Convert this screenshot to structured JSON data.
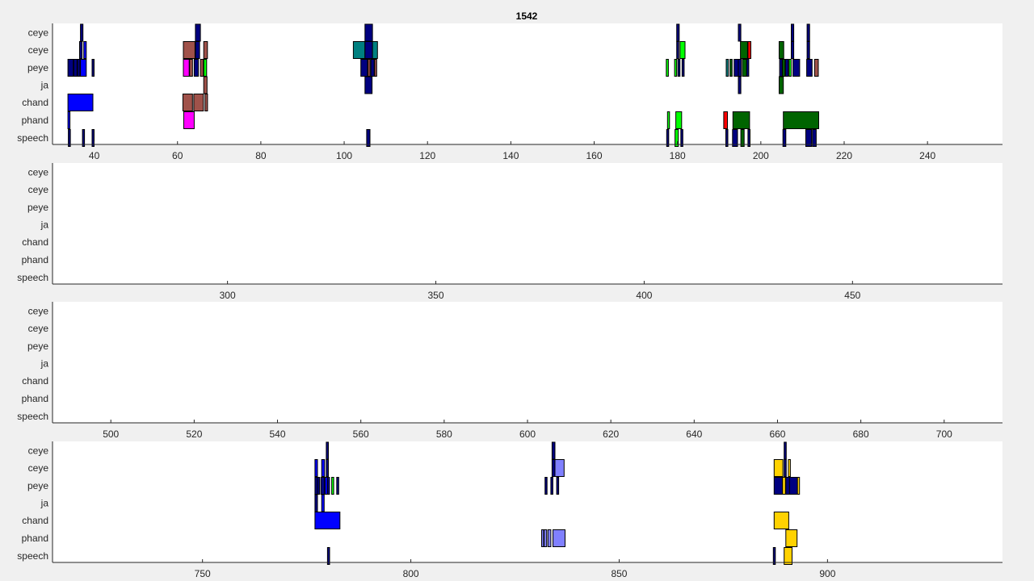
{
  "figure": {
    "title": "1542"
  },
  "chart_data": [
    {
      "type": "timeline",
      "rows": [
        "ceye",
        "ceye",
        "peye",
        "ja",
        "chand",
        "phand",
        "speech"
      ],
      "xlim": [
        30,
        258
      ],
      "xticks": [
        40,
        60,
        80,
        100,
        120,
        140,
        160,
        180,
        200,
        220,
        240
      ],
      "events": [
        {
          "row": 0,
          "x0": 36.7,
          "x1": 37.3,
          "color": "#000080"
        },
        {
          "row": 0,
          "x0": 64.3,
          "x1": 65.5,
          "color": "#000080"
        },
        {
          "row": 0,
          "x0": 105,
          "x1": 106.8,
          "color": "#000080"
        },
        {
          "row": 0,
          "x0": 179.8,
          "x1": 180.4,
          "color": "#000080"
        },
        {
          "row": 0,
          "x0": 194.6,
          "x1": 195.2,
          "color": "#000080"
        },
        {
          "row": 0,
          "x0": 207.3,
          "x1": 207.9,
          "color": "#000080"
        },
        {
          "row": 0,
          "x0": 211.1,
          "x1": 211.7,
          "color": "#000080"
        },
        {
          "row": 1,
          "x0": 36.5,
          "x1": 37.1,
          "color": "#000080"
        },
        {
          "row": 1,
          "x0": 37.5,
          "x1": 38.1,
          "color": "#0000ff"
        },
        {
          "row": 1,
          "x0": 61.4,
          "x1": 64.2,
          "color": "#a0524a"
        },
        {
          "row": 1,
          "x0": 64.3,
          "x1": 65.3,
          "color": "#000080"
        },
        {
          "row": 1,
          "x0": 66.3,
          "x1": 67.2,
          "color": "#a0524a"
        },
        {
          "row": 1,
          "x0": 102.2,
          "x1": 105.0,
          "color": "#008080"
        },
        {
          "row": 1,
          "x0": 105.0,
          "x1": 106.8,
          "color": "#000080"
        },
        {
          "row": 1,
          "x0": 106.8,
          "x1": 108.0,
          "color": "#008080"
        },
        {
          "row": 1,
          "x0": 179.8,
          "x1": 180.2,
          "color": "#000080"
        },
        {
          "row": 1,
          "x0": 180.6,
          "x1": 181.8,
          "color": "#00ff00"
        },
        {
          "row": 1,
          "x0": 195.1,
          "x1": 196.8,
          "color": "#006400"
        },
        {
          "row": 1,
          "x0": 196.9,
          "x1": 197.6,
          "color": "#ff0000"
        },
        {
          "row": 1,
          "x0": 204.4,
          "x1": 205.5,
          "color": "#006400"
        },
        {
          "row": 1,
          "x0": 207.3,
          "x1": 207.9,
          "color": "#000080"
        },
        {
          "row": 1,
          "x0": 211.1,
          "x1": 211.7,
          "color": "#000080"
        },
        {
          "row": 2,
          "x0": 33.7,
          "x1": 35.0,
          "color": "#000080"
        },
        {
          "row": 2,
          "x0": 35.1,
          "x1": 35.9,
          "color": "#000080"
        },
        {
          "row": 2,
          "x0": 36.0,
          "x1": 36.6,
          "color": "#000080"
        },
        {
          "row": 2,
          "x0": 36.7,
          "x1": 38.1,
          "color": "#0000ff"
        },
        {
          "row": 2,
          "x0": 39.5,
          "x1": 39.9,
          "color": "#000080"
        },
        {
          "row": 2,
          "x0": 61.4,
          "x1": 62.8,
          "color": "#ff00ff"
        },
        {
          "row": 2,
          "x0": 62.9,
          "x1": 63.6,
          "color": "#a0524a"
        },
        {
          "row": 2,
          "x0": 64.0,
          "x1": 65.0,
          "color": "#000080"
        },
        {
          "row": 2,
          "x0": 65.5,
          "x1": 66.2,
          "color": "#a0524a"
        },
        {
          "row": 2,
          "x0": 66.3,
          "x1": 67.0,
          "color": "#00ff00"
        },
        {
          "row": 2,
          "x0": 104.0,
          "x1": 105.6,
          "color": "#000080"
        },
        {
          "row": 2,
          "x0": 105.7,
          "x1": 106.2,
          "color": "#a0524a"
        },
        {
          "row": 2,
          "x0": 106.4,
          "x1": 107.2,
          "color": "#000080"
        },
        {
          "row": 2,
          "x0": 107.3,
          "x1": 107.8,
          "color": "#a0524a"
        },
        {
          "row": 2,
          "x0": 177.3,
          "x1": 177.8,
          "color": "#00ff00"
        },
        {
          "row": 2,
          "x0": 179.3,
          "x1": 179.7,
          "color": "#00ff00"
        },
        {
          "row": 2,
          "x0": 180.1,
          "x1": 180.5,
          "color": "#000080"
        },
        {
          "row": 2,
          "x0": 181.1,
          "x1": 181.5,
          "color": "#000080"
        },
        {
          "row": 2,
          "x0": 191.7,
          "x1": 192.2,
          "color": "#008080"
        },
        {
          "row": 2,
          "x0": 192.6,
          "x1": 193.1,
          "color": "#006400"
        },
        {
          "row": 2,
          "x0": 193.6,
          "x1": 194.6,
          "color": "#000080"
        },
        {
          "row": 2,
          "x0": 194.6,
          "x1": 195.3,
          "color": "#000080"
        },
        {
          "row": 2,
          "x0": 195.6,
          "x1": 196.6,
          "color": "#006400"
        },
        {
          "row": 2,
          "x0": 196.6,
          "x1": 197.1,
          "color": "#000080"
        },
        {
          "row": 2,
          "x0": 204.5,
          "x1": 205.1,
          "color": "#000080"
        },
        {
          "row": 2,
          "x0": 205.2,
          "x1": 205.8,
          "color": "#006400"
        },
        {
          "row": 2,
          "x0": 205.9,
          "x1": 206.6,
          "color": "#000080"
        },
        {
          "row": 2,
          "x0": 206.8,
          "x1": 207.2,
          "color": "#00ff00"
        },
        {
          "row": 2,
          "x0": 207.7,
          "x1": 209.3,
          "color": "#000080"
        },
        {
          "row": 2,
          "x0": 211.0,
          "x1": 212.3,
          "color": "#000080"
        },
        {
          "row": 2,
          "x0": 212.9,
          "x1": 213.8,
          "color": "#a0524a"
        },
        {
          "row": 3,
          "x0": 66.3,
          "x1": 67.1,
          "color": "#a0524a"
        },
        {
          "row": 3,
          "x0": 105.0,
          "x1": 106.7,
          "color": "#000080"
        },
        {
          "row": 3,
          "x0": 194.6,
          "x1": 195.2,
          "color": "#000080"
        },
        {
          "row": 3,
          "x0": 204.4,
          "x1": 205.4,
          "color": "#006400"
        },
        {
          "row": 4,
          "x0": 33.7,
          "x1": 39.7,
          "color": "#0000ff"
        },
        {
          "row": 4,
          "x0": 61.3,
          "x1": 63.6,
          "color": "#a0524a"
        },
        {
          "row": 4,
          "x0": 63.9,
          "x1": 66.2,
          "color": "#a0524a"
        },
        {
          "row": 4,
          "x0": 66.6,
          "x1": 67.2,
          "color": "#a0524a"
        },
        {
          "row": 5,
          "x0": 33.7,
          "x1": 34.0,
          "color": "#0000ff"
        },
        {
          "row": 5,
          "x0": 61.5,
          "x1": 64.0,
          "color": "#ff00ff"
        },
        {
          "row": 5,
          "x0": 177.6,
          "x1": 178.0,
          "color": "#00ff00"
        },
        {
          "row": 5,
          "x0": 179.6,
          "x1": 181.0,
          "color": "#00ff00"
        },
        {
          "row": 5,
          "x0": 191.1,
          "x1": 192.0,
          "color": "#ff0000"
        },
        {
          "row": 5,
          "x0": 193.3,
          "x1": 197.3,
          "color": "#006400"
        },
        {
          "row": 5,
          "x0": 205.4,
          "x1": 213.9,
          "color": "#006400"
        },
        {
          "row": 6,
          "x0": 33.8,
          "x1": 34.1,
          "color": "#000080"
        },
        {
          "row": 6,
          "x0": 37.2,
          "x1": 37.5,
          "color": "#000080"
        },
        {
          "row": 6,
          "x0": 39.5,
          "x1": 39.8,
          "color": "#000080"
        },
        {
          "row": 6,
          "x0": 105.4,
          "x1": 106.2,
          "color": "#000080"
        },
        {
          "row": 6,
          "x0": 177.4,
          "x1": 177.8,
          "color": "#000080"
        },
        {
          "row": 6,
          "x0": 179.4,
          "x1": 180.2,
          "color": "#00ff00"
        },
        {
          "row": 6,
          "x0": 180.8,
          "x1": 181.2,
          "color": "#000080"
        },
        {
          "row": 6,
          "x0": 191.6,
          "x1": 192.0,
          "color": "#000080"
        },
        {
          "row": 6,
          "x0": 193.2,
          "x1": 194.4,
          "color": "#000080"
        },
        {
          "row": 6,
          "x0": 195.2,
          "x1": 196.0,
          "color": "#006400"
        },
        {
          "row": 6,
          "x0": 196.9,
          "x1": 197.4,
          "color": "#000080"
        },
        {
          "row": 6,
          "x0": 205.3,
          "x1": 206.0,
          "color": "#000080"
        },
        {
          "row": 6,
          "x0": 210.8,
          "x1": 212.2,
          "color": "#000080"
        },
        {
          "row": 6,
          "x0": 212.4,
          "x1": 213.3,
          "color": "#000080"
        }
      ]
    },
    {
      "type": "timeline",
      "rows": [
        "ceye",
        "ceye",
        "peye",
        "ja",
        "chand",
        "phand",
        "speech"
      ],
      "xlim": [
        258,
        486
      ],
      "xticks": [
        300,
        350,
        400,
        450
      ],
      "events": []
    },
    {
      "type": "timeline",
      "rows": [
        "ceye",
        "ceye",
        "peye",
        "ja",
        "chand",
        "phand",
        "speech"
      ],
      "xlim": [
        486,
        714
      ],
      "xticks": [
        500,
        520,
        540,
        560,
        580,
        600,
        620,
        640,
        660,
        680,
        700
      ],
      "events": []
    },
    {
      "type": "timeline",
      "rows": [
        "ceye",
        "ceye",
        "peye",
        "ja",
        "chand",
        "phand",
        "speech"
      ],
      "xlim": [
        714,
        942
      ],
      "xticks": [
        750,
        800,
        850,
        900
      ],
      "events": [
        {
          "row": 0,
          "x0": 779.7,
          "x1": 780.2,
          "color": "#000080"
        },
        {
          "row": 0,
          "x0": 833.9,
          "x1": 834.6,
          "color": "#000080"
        },
        {
          "row": 0,
          "x0": 889.6,
          "x1": 890.1,
          "color": "#000080"
        },
        {
          "row": 1,
          "x0": 777.0,
          "x1": 777.6,
          "color": "#0000ff"
        },
        {
          "row": 1,
          "x0": 778.6,
          "x1": 779.3,
          "color": "#0000ff"
        },
        {
          "row": 1,
          "x0": 779.7,
          "x1": 780.2,
          "color": "#000080"
        },
        {
          "row": 1,
          "x0": 833.9,
          "x1": 834.6,
          "color": "#000080"
        },
        {
          "row": 1,
          "x0": 834.6,
          "x1": 836.8,
          "color": "#8080ff"
        },
        {
          "row": 1,
          "x0": 887.2,
          "x1": 889.3,
          "color": "#ffd200"
        },
        {
          "row": 1,
          "x0": 889.6,
          "x1": 890.1,
          "color": "#000080"
        },
        {
          "row": 1,
          "x0": 890.6,
          "x1": 891.0,
          "color": "#ffd200"
        },
        {
          "row": 2,
          "x0": 777.0,
          "x1": 777.6,
          "color": "#000080"
        },
        {
          "row": 2,
          "x0": 777.6,
          "x1": 778.1,
          "color": "#000080"
        },
        {
          "row": 2,
          "x0": 778.4,
          "x1": 779.3,
          "color": "#000080"
        },
        {
          "row": 2,
          "x0": 779.4,
          "x1": 780.0,
          "color": "#0000ff"
        },
        {
          "row": 2,
          "x0": 780.0,
          "x1": 780.4,
          "color": "#000080"
        },
        {
          "row": 2,
          "x0": 781.0,
          "x1": 781.4,
          "color": "#00ff00"
        },
        {
          "row": 2,
          "x0": 782.2,
          "x1": 782.5,
          "color": "#000080"
        },
        {
          "row": 2,
          "x0": 832.2,
          "x1": 832.5,
          "color": "#000080"
        },
        {
          "row": 2,
          "x0": 833.6,
          "x1": 834.0,
          "color": "#000080"
        },
        {
          "row": 2,
          "x0": 835.0,
          "x1": 835.4,
          "color": "#000080"
        },
        {
          "row": 2,
          "x0": 887.2,
          "x1": 889.2,
          "color": "#000080"
        },
        {
          "row": 2,
          "x0": 889.2,
          "x1": 889.9,
          "color": "#ffd200"
        },
        {
          "row": 2,
          "x0": 890.0,
          "x1": 890.9,
          "color": "#000080"
        },
        {
          "row": 2,
          "x0": 890.9,
          "x1": 892.8,
          "color": "#000080"
        },
        {
          "row": 2,
          "x0": 892.8,
          "x1": 893.2,
          "color": "#ffd200"
        },
        {
          "row": 3,
          "x0": 777.0,
          "x1": 777.6,
          "color": "#000080"
        },
        {
          "row": 3,
          "x0": 778.6,
          "x1": 779.2,
          "color": "#0000ff"
        },
        {
          "row": 4,
          "x0": 777.0,
          "x1": 783.0,
          "color": "#0000ff"
        },
        {
          "row": 4,
          "x0": 887.2,
          "x1": 890.7,
          "color": "#ffd200"
        },
        {
          "row": 5,
          "x0": 831.4,
          "x1": 831.8,
          "color": "#8080ff"
        },
        {
          "row": 5,
          "x0": 832.0,
          "x1": 832.6,
          "color": "#8080ff"
        },
        {
          "row": 5,
          "x0": 832.9,
          "x1": 833.6,
          "color": "#8080ff"
        },
        {
          "row": 5,
          "x0": 834.1,
          "x1": 837.0,
          "color": "#8080ff"
        },
        {
          "row": 5,
          "x0": 890.0,
          "x1": 892.7,
          "color": "#ffd200"
        },
        {
          "row": 6,
          "x0": 780.0,
          "x1": 780.5,
          "color": "#000080"
        },
        {
          "row": 6,
          "x0": 887.0,
          "x1": 887.4,
          "color": "#000080"
        },
        {
          "row": 6,
          "x0": 889.6,
          "x1": 891.5,
          "color": "#ffd200"
        }
      ]
    }
  ]
}
